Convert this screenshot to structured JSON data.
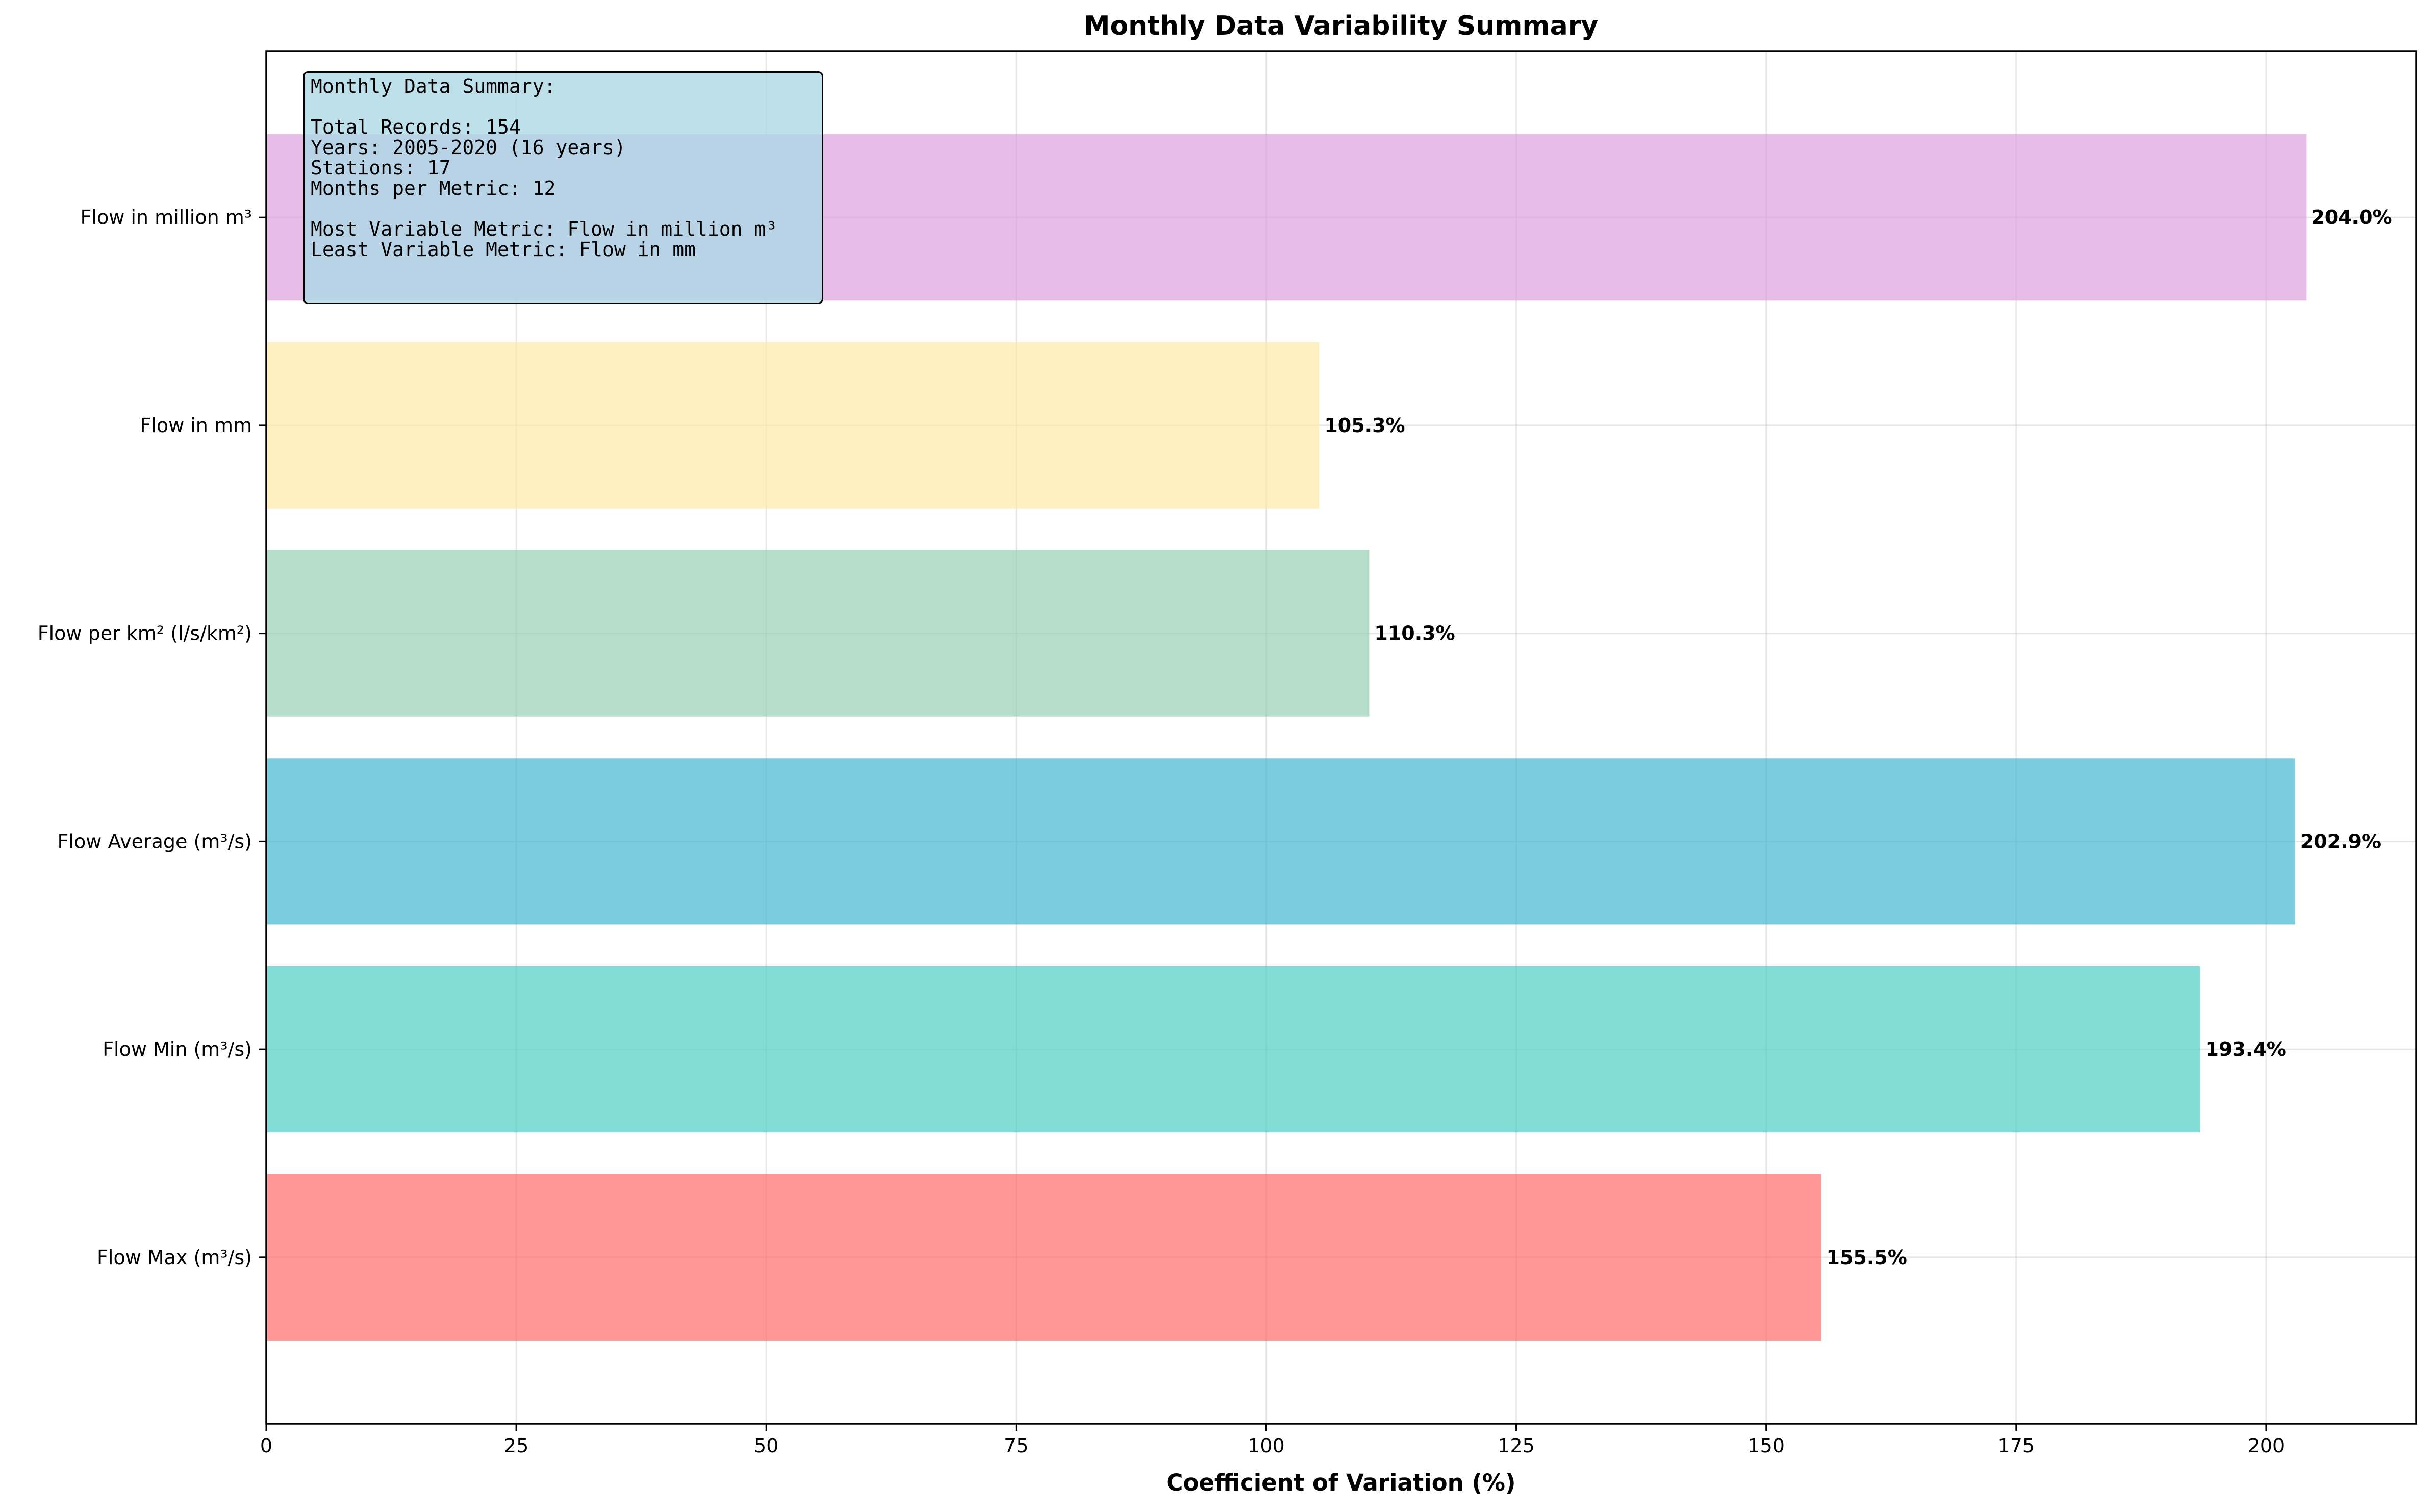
{
  "chart_data": {
    "type": "bar",
    "orientation": "horizontal",
    "title": "Monthly Data Variability Summary",
    "xlabel": "Coefficient of Variation (%)",
    "ylabel": "",
    "xlim": [
      0,
      215
    ],
    "xticks": [
      0,
      25,
      50,
      75,
      100,
      125,
      150,
      175,
      200
    ],
    "grid": true,
    "categories": [
      "Flow Max (m³/s)",
      "Flow Min (m³/s)",
      "Flow Average (m³/s)",
      "Flow per km² (l/s/km²)",
      "Flow in mm",
      "Flow in million m³"
    ],
    "values": [
      155.5,
      193.4,
      202.9,
      110.3,
      105.3,
      204.0
    ],
    "value_labels": [
      "155.5%",
      "193.4%",
      "202.9%",
      "110.3%",
      "105.3%",
      "204.0%"
    ],
    "colors": [
      "#FF6B6B",
      "#4ECDC4",
      "#45B7D1",
      "#96CEB4",
      "#FFEAA7",
      "#DDA0DD"
    ]
  },
  "summary": {
    "heading": "Monthly Data Summary:",
    "total_records": "Total Records: 154",
    "years": "Years: 2005-2020 (16 years)",
    "stations": "Stations: 17",
    "months_per_metric": "Months per Metric: 12",
    "most_variable": "Most Variable Metric: Flow in million m³",
    "least_variable": "Least Variable Metric: Flow in mm"
  }
}
